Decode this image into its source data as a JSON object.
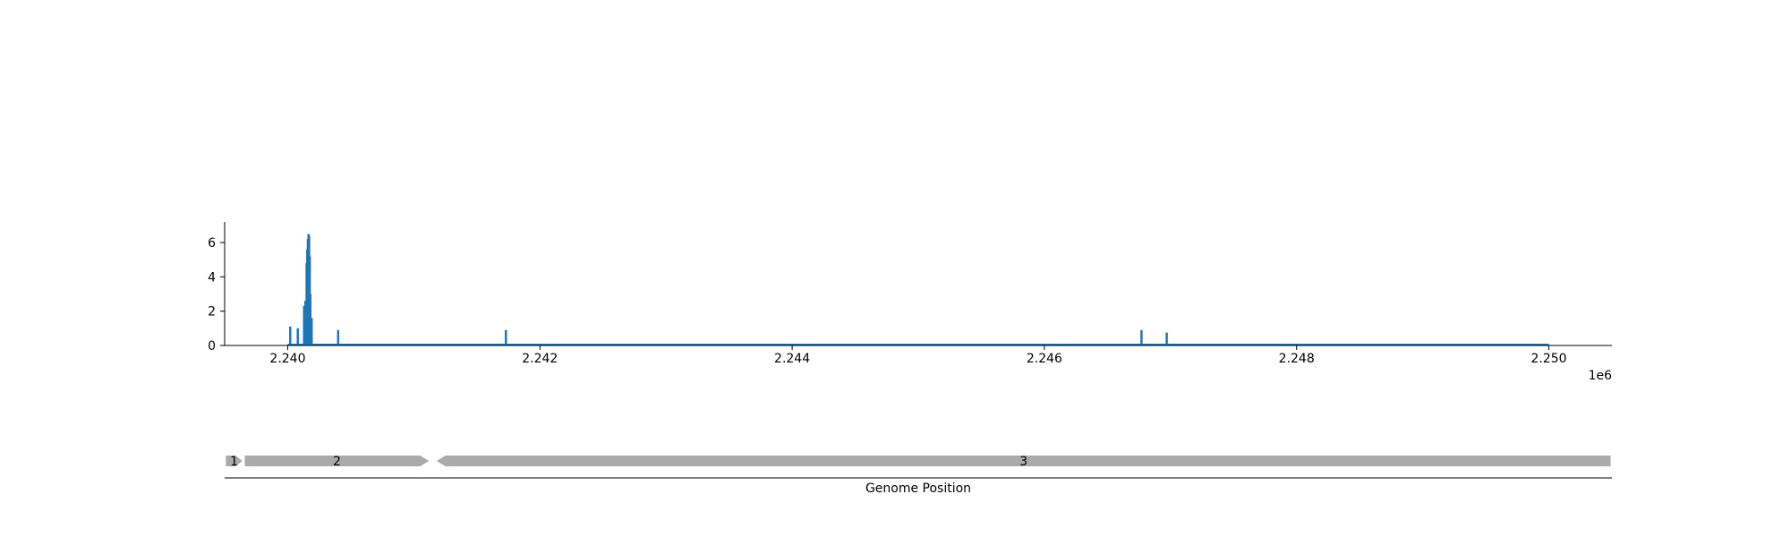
{
  "chart_data": {
    "type": "bar",
    "x_scale_label": "1e6",
    "xlim": [
      2239500,
      2250500
    ],
    "ylim": [
      0,
      7.2
    ],
    "x_ticks": [
      {
        "value": 2240000,
        "label": "2.240"
      },
      {
        "value": 2242000,
        "label": "2.242"
      },
      {
        "value": 2244000,
        "label": "2.244"
      },
      {
        "value": 2246000,
        "label": "2.246"
      },
      {
        "value": 2248000,
        "label": "2.248"
      },
      {
        "value": 2250000,
        "label": "2.250"
      }
    ],
    "y_ticks": [
      {
        "value": 0,
        "label": "0"
      },
      {
        "value": 2,
        "label": "2"
      },
      {
        "value": 4,
        "label": "4"
      },
      {
        "value": 6,
        "label": "6"
      }
    ],
    "baseline": {
      "start": 2240000,
      "end": 2250000,
      "value": 0
    },
    "bars": [
      {
        "x": 2240020,
        "y": 1.1
      },
      {
        "x": 2240080,
        "y": 1.0
      },
      {
        "x": 2240130,
        "y": 2.3
      },
      {
        "x": 2240140,
        "y": 2.6
      },
      {
        "x": 2240150,
        "y": 4.8
      },
      {
        "x": 2240155,
        "y": 5.6
      },
      {
        "x": 2240160,
        "y": 6.2
      },
      {
        "x": 2240165,
        "y": 6.5
      },
      {
        "x": 2240170,
        "y": 6.4
      },
      {
        "x": 2240175,
        "y": 5.2
      },
      {
        "x": 2240180,
        "y": 3.0
      },
      {
        "x": 2240190,
        "y": 1.6
      },
      {
        "x": 2240400,
        "y": 0.9
      },
      {
        "x": 2241730,
        "y": 0.9
      },
      {
        "x": 2246770,
        "y": 0.9
      },
      {
        "x": 2246970,
        "y": 0.75
      }
    ],
    "colors": {
      "bars": "#1f77b4",
      "genes": "#aaaaaa",
      "axis": "#000000"
    }
  },
  "gene_track": {
    "xlabel": "Genome Position",
    "genes": [
      {
        "label": "1",
        "start": 2239510,
        "end": 2239640,
        "strand": "+"
      },
      {
        "label": "2",
        "start": 2239660,
        "end": 2241120,
        "strand": "+"
      },
      {
        "label": "3",
        "start": 2241180,
        "end": 2250490,
        "strand": "-"
      }
    ]
  }
}
